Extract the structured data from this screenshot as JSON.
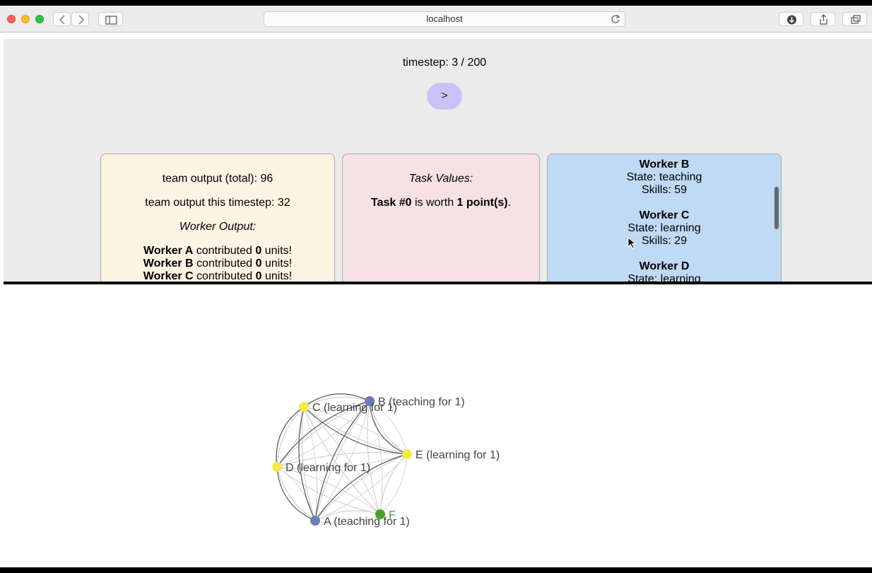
{
  "browser": {
    "address": "localhost"
  },
  "sim": {
    "timestep_text": "timestep: 3 / 200",
    "step_button_label": ">"
  },
  "output_panel": {
    "total": "team output (total): 96",
    "this_step": "team output this timestep: 32",
    "worker_output_heading": "Worker Output:",
    "rows": [
      {
        "name": "Worker A",
        "mid": " contributed ",
        "units": "0",
        "end": " units!"
      },
      {
        "name": "Worker B",
        "mid": " contributed ",
        "units": "0",
        "end": " units!"
      },
      {
        "name": "Worker C",
        "mid": " contributed ",
        "units": "0",
        "end": " units!"
      }
    ]
  },
  "task_panel": {
    "heading": "Task Values:",
    "task_name": "Task #0",
    "mid": " is worth ",
    "points": "1 point(s)",
    "end": "."
  },
  "workers_panel": {
    "workers": [
      {
        "name": "Worker B",
        "state": "State: teaching",
        "skills": "Skills: 59"
      },
      {
        "name": "Worker C",
        "state": "State: learning",
        "skills": "Skills: 29"
      },
      {
        "name": "Worker D",
        "state": "State: learning",
        "skills": ""
      }
    ]
  },
  "graph": {
    "colors": {
      "teaching": "#6a7fb5",
      "learning": "#f5e94a",
      "other": "#4aa02c"
    },
    "nodes": [
      {
        "id": "B",
        "label": "B (teaching for 1)",
        "kind": "teaching"
      },
      {
        "id": "C",
        "label": "C (learning for 1)",
        "kind": "learning"
      },
      {
        "id": "E",
        "label": "E (learning for 1)",
        "kind": "learning"
      },
      {
        "id": "D",
        "label": "D (learning for 1)",
        "kind": "learning"
      },
      {
        "id": "F",
        "label": "F",
        "kind": "other"
      },
      {
        "id": "A",
        "label": "A (teaching for 1)",
        "kind": "teaching"
      }
    ]
  }
}
